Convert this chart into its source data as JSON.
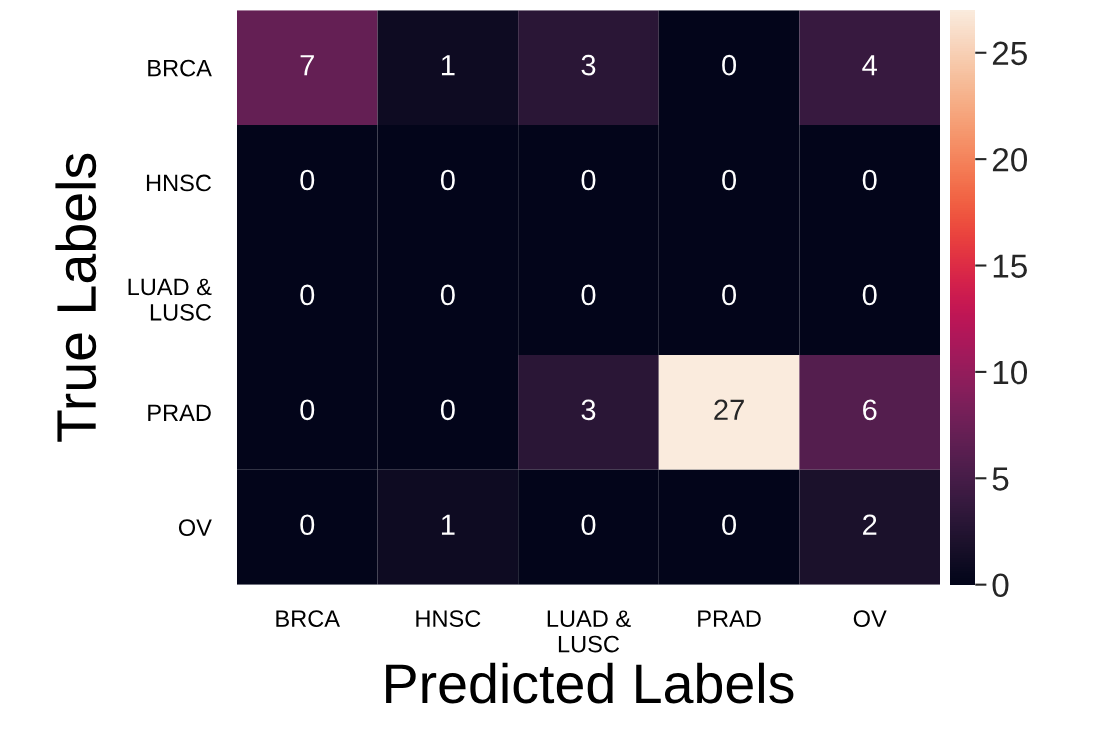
{
  "chart_data": {
    "type": "heatmap",
    "xlabel": "Predicted Labels",
    "ylabel": "True Labels",
    "categories": [
      "BRCA",
      "HNSC",
      "LUAD &\nLUSC",
      "PRAD",
      "OV"
    ],
    "y_categories": [
      "BRCA",
      "HNSC",
      "LUAD &\nLUSC",
      "PRAD",
      "OV"
    ],
    "cells": [
      [
        7,
        1,
        3,
        0,
        4
      ],
      [
        0,
        0,
        0,
        0,
        0
      ],
      [
        0,
        0,
        0,
        0,
        0
      ],
      [
        0,
        0,
        3,
        27,
        6
      ],
      [
        0,
        1,
        0,
        0,
        2
      ]
    ],
    "clim": [
      0,
      27
    ],
    "cticks": [
      0,
      5,
      10,
      15,
      20,
      25
    ],
    "data_labels": true
  }
}
